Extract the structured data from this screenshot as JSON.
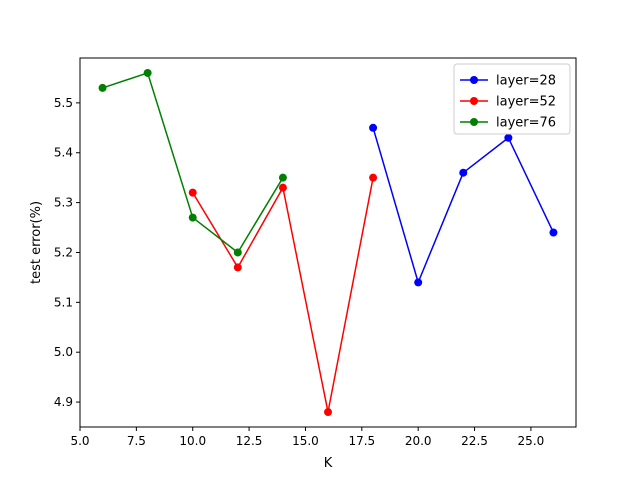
{
  "chart_data": {
    "type": "line",
    "title": "",
    "xlabel": "K",
    "ylabel": "test error(%)",
    "xlim": [
      5.0,
      27.0
    ],
    "ylim": [
      4.85,
      5.59
    ],
    "xticks": [
      5.0,
      7.5,
      10.0,
      12.5,
      15.0,
      17.5,
      20.0,
      22.5,
      25.0
    ],
    "xtick_labels": [
      "5.0",
      "7.5",
      "10.0",
      "12.5",
      "15.0",
      "17.5",
      "20.0",
      "22.5",
      "25.0"
    ],
    "yticks": [
      4.9,
      5.0,
      5.1,
      5.2,
      5.3,
      5.4,
      5.5
    ],
    "ytick_labels": [
      "4.9",
      "5.0",
      "5.1",
      "5.2",
      "5.3",
      "5.4",
      "5.5"
    ],
    "grid": false,
    "legend_position": "top-right",
    "series": [
      {
        "name": "layer=28",
        "color": "#0000ff",
        "x": [
          18,
          20,
          22,
          24,
          26
        ],
        "y": [
          5.45,
          5.14,
          5.36,
          5.43,
          5.24
        ]
      },
      {
        "name": "layer=52",
        "color": "#ff0000",
        "x": [
          10,
          12,
          14,
          16,
          18
        ],
        "y": [
          5.32,
          5.17,
          5.33,
          4.88,
          5.35
        ]
      },
      {
        "name": "layer=76",
        "color": "#008000",
        "x": [
          6,
          8,
          10,
          12,
          14
        ],
        "y": [
          5.53,
          5.56,
          5.27,
          5.2,
          5.35
        ]
      }
    ]
  }
}
